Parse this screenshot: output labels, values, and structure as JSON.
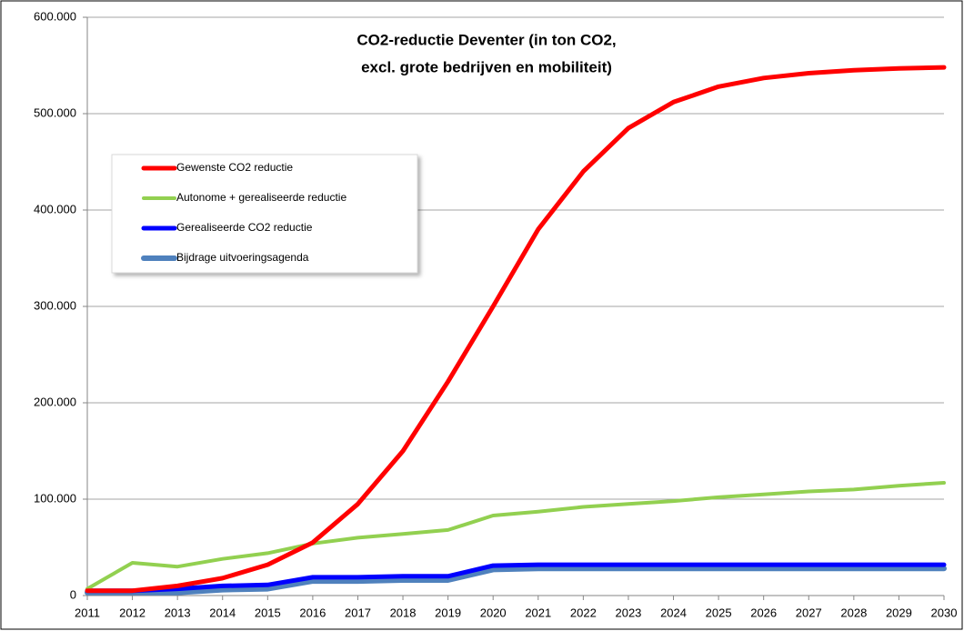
{
  "chart_data": {
    "type": "line",
    "title": [
      "CO2-reductie Deventer (in ton CO2,",
      "excl. grote bedrijven en mobiliteit)"
    ],
    "x": [
      2011,
      2012,
      2013,
      2014,
      2015,
      2016,
      2017,
      2018,
      2019,
      2020,
      2021,
      2022,
      2023,
      2024,
      2025,
      2026,
      2027,
      2028,
      2029,
      2030
    ],
    "xlim": [
      2011,
      2030
    ],
    "xticks": [
      2011,
      2012,
      2013,
      2014,
      2015,
      2016,
      2017,
      2018,
      2019,
      2020,
      2021,
      2022,
      2023,
      2024,
      2025,
      2026,
      2027,
      2028,
      2029,
      2030
    ],
    "ylim": [
      0,
      600000
    ],
    "yticks": [
      {
        "value": 0,
        "label": "0"
      },
      {
        "value": 100000,
        "label": "100.000"
      },
      {
        "value": 200000,
        "label": "200.000"
      },
      {
        "value": 300000,
        "label": "300.000"
      },
      {
        "value": 400000,
        "label": "400.000"
      },
      {
        "value": 500000,
        "label": "500.000"
      },
      {
        "value": 600000,
        "label": "600.000"
      }
    ],
    "grid": true,
    "legend": "upper left",
    "series": [
      {
        "name": "Gewenste CO2 reductie",
        "color": "#ff0000",
        "values": [
          5000,
          5000,
          10000,
          18000,
          32000,
          55000,
          95000,
          150000,
          222000,
          300000,
          380000,
          440000,
          485000,
          512000,
          528000,
          537000,
          542000,
          545000,
          547000,
          548000
        ]
      },
      {
        "name": "Autonome + gerealiseerde reductie",
        "color": "#92d050",
        "values": [
          7000,
          34000,
          30000,
          38000,
          44000,
          54000,
          60000,
          64000,
          68000,
          83000,
          87000,
          92000,
          95000,
          98000,
          102000,
          105000,
          108000,
          110000,
          114000,
          117000
        ]
      },
      {
        "name": "Gerealiseerde CO2 reductie",
        "color": "#0000ff",
        "values": [
          5000,
          5000,
          7000,
          10000,
          11000,
          19000,
          19000,
          20000,
          20000,
          31000,
          32000,
          32000,
          32000,
          32000,
          32000,
          32000,
          32000,
          32000,
          32000,
          32000
        ]
      },
      {
        "name": "Bijdrage uitvoeringsagenda",
        "color": "#4f81bd",
        "values": [
          3000,
          3000,
          3000,
          6000,
          7000,
          15000,
          15000,
          16000,
          16000,
          27000,
          28000,
          28000,
          28000,
          28000,
          28000,
          28000,
          28000,
          28000,
          28000,
          28000
        ]
      }
    ]
  }
}
